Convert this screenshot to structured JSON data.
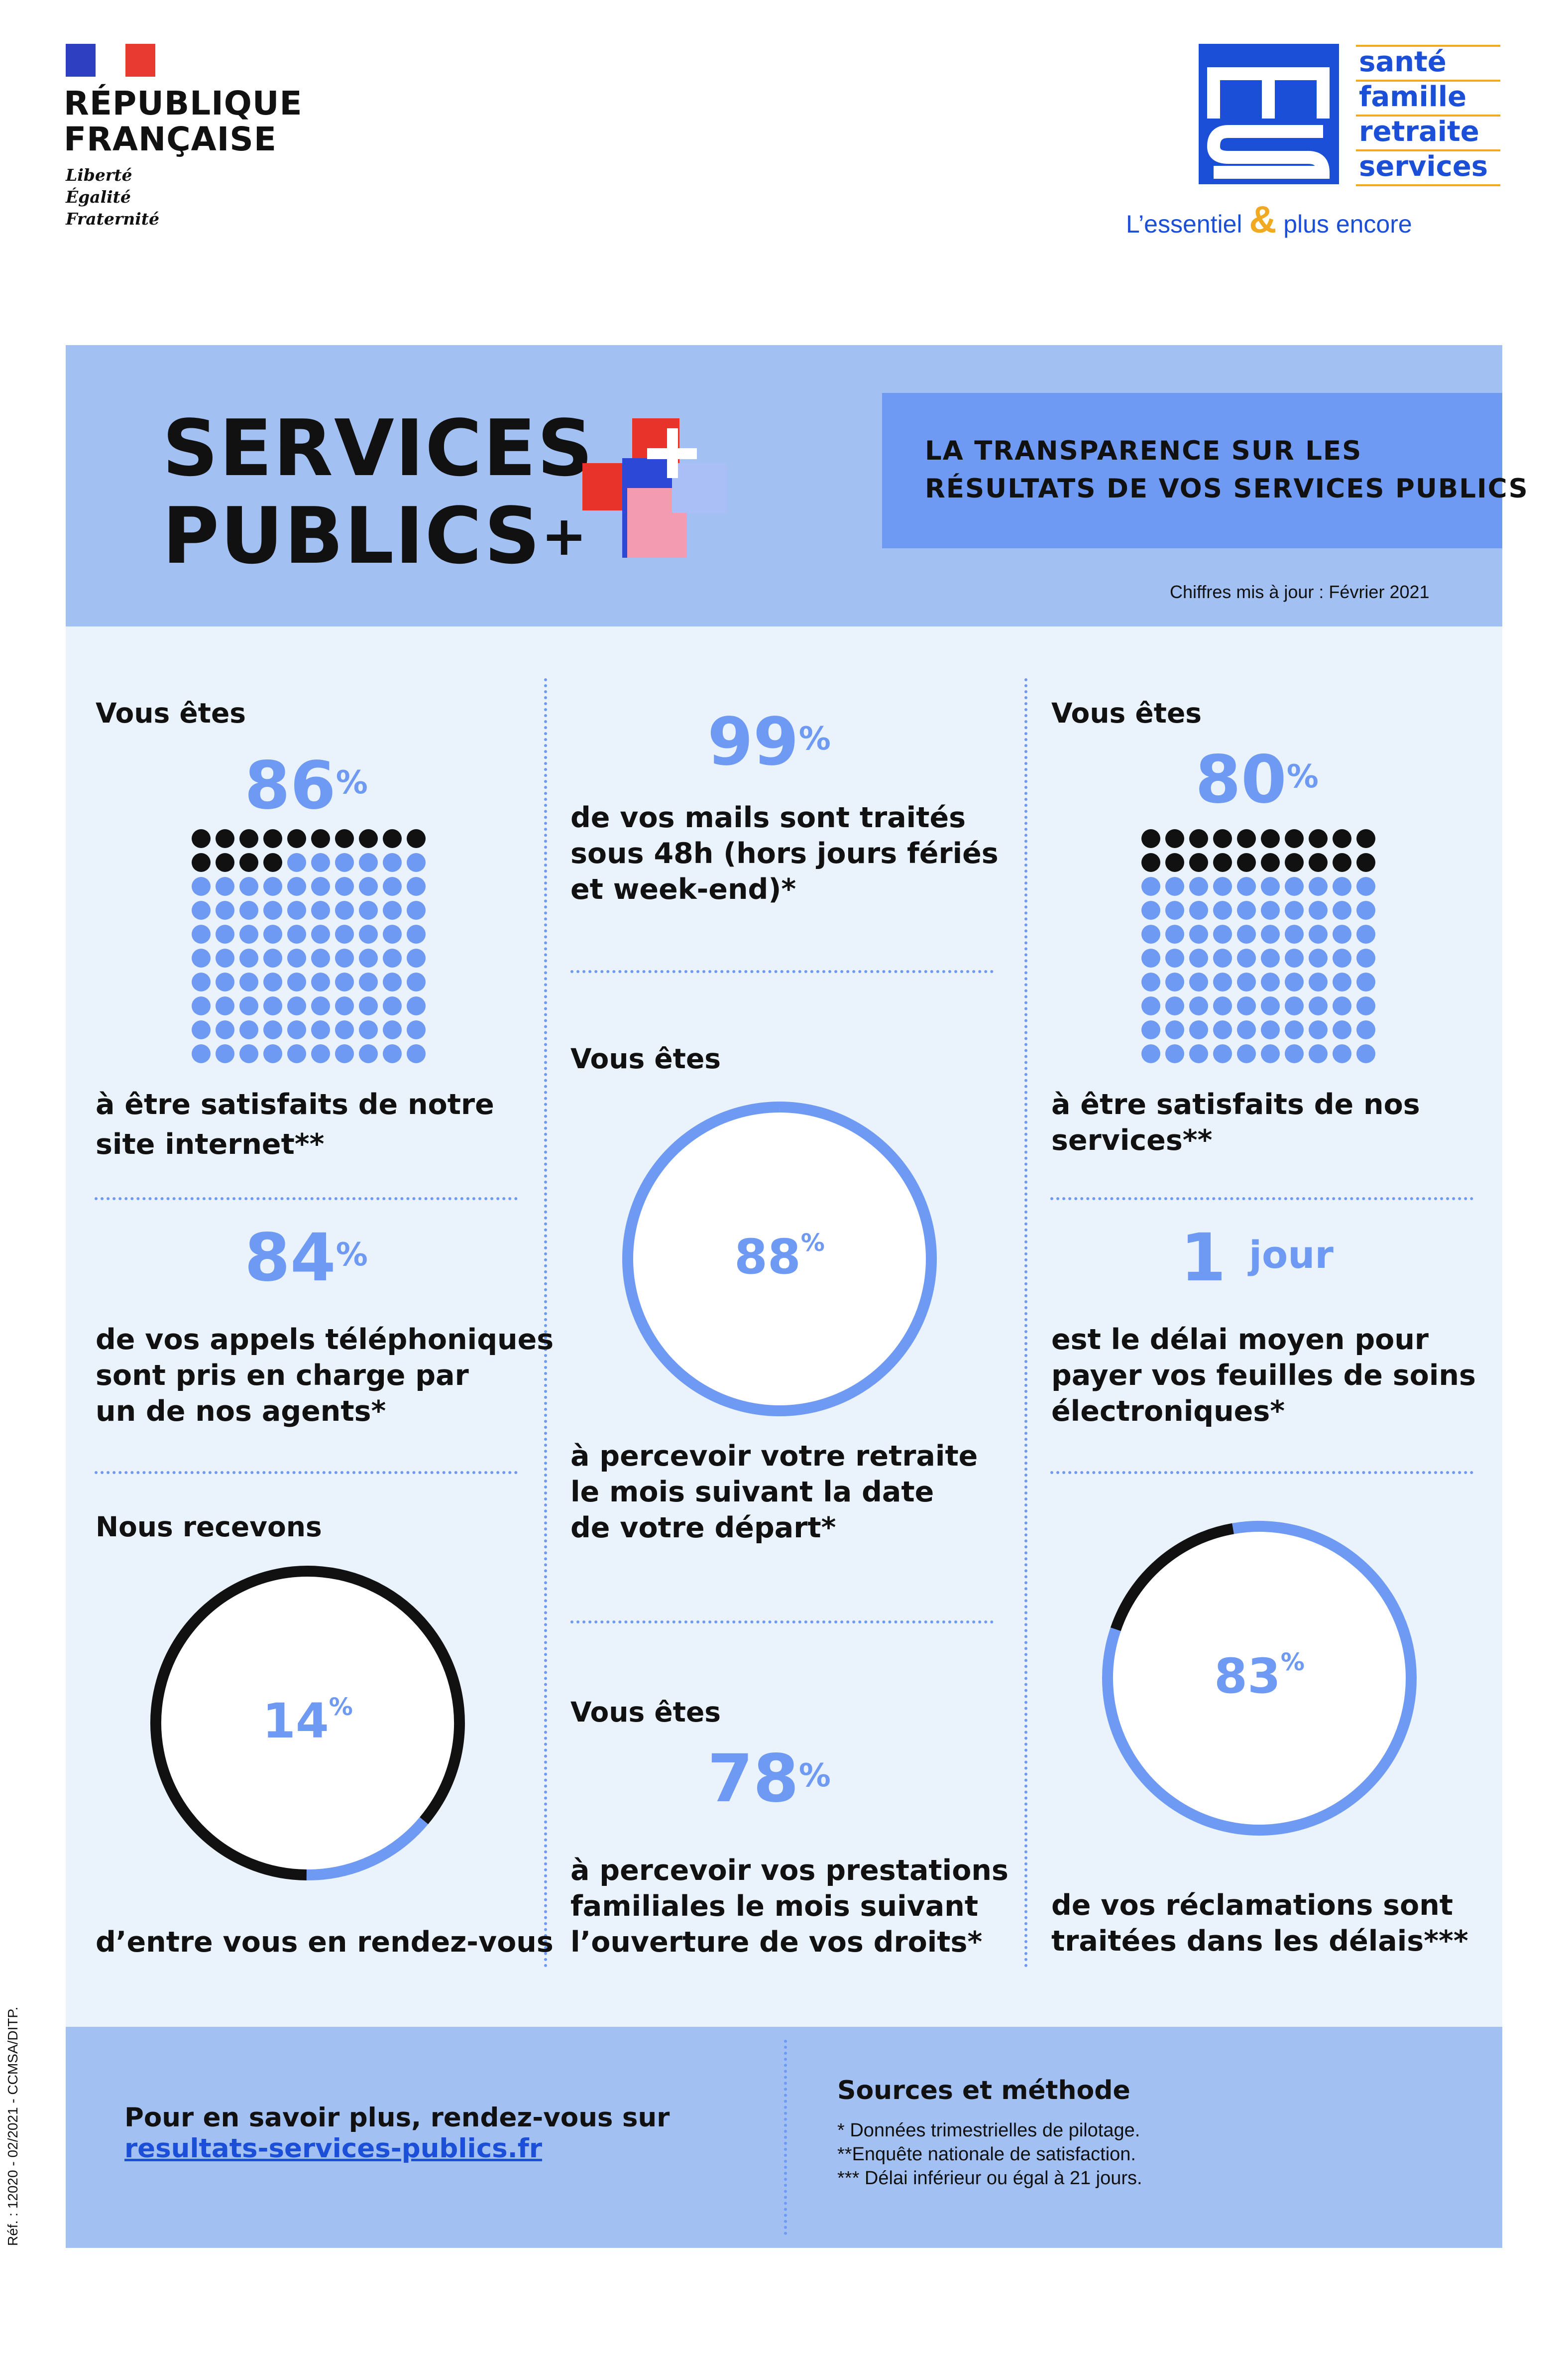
{
  "republique": {
    "line1": "RÉPUBLIQUE",
    "line2": "FRANÇAISE",
    "motto": [
      "Liberté",
      "Égalité",
      "Fraternité"
    ]
  },
  "msa": {
    "words": [
      "santé",
      "famille",
      "retraite",
      "services"
    ],
    "tagline_left": "L’essentiel",
    "tagline_amp": "&",
    "tagline_right": "plus encore",
    "colors": {
      "blue": "#1b4fd8",
      "orange": "#f2a922"
    }
  },
  "header": {
    "title_line1": "SERVICES",
    "title_line2": "PUBLICS",
    "title_plus": "+",
    "subtitle_line1": "LA TRANSPARENCE SUR LES",
    "subtitle_line2": "RÉSULTATS DE VOS SERVICES PUBLICS",
    "update": "Chiffres mis à jour : Février 2021"
  },
  "stats": {
    "website": {
      "lead": "Vous êtes",
      "value": "86",
      "unit": "%",
      "fraction": 0.86,
      "text_line1": "à être satisfaits de notre",
      "text_line2": "site internet**"
    },
    "calls": {
      "value": "84",
      "unit": "%",
      "text_line1": "de vos appels téléphoniques",
      "text_line2": "sont pris en charge par",
      "text_line3": "un de nos agents*"
    },
    "appointments": {
      "lead": "Nous recevons",
      "value": "14",
      "unit": "%",
      "fraction": 0.14,
      "text_line1": "d’entre vous en rendez-vous"
    },
    "mails": {
      "value": "99",
      "unit": "%",
      "text_line1": "de vos mails sont traités",
      "text_line2": "sous 48h (hors jours fériés",
      "text_line3": "et week-end)*"
    },
    "retirement": {
      "lead": "Vous êtes",
      "value": "88",
      "unit": "%",
      "fraction": 0.88,
      "text_line1": "à percevoir votre retraite",
      "text_line2": "le mois suivant la date",
      "text_line3": "de votre départ*"
    },
    "family": {
      "lead": "Vous êtes",
      "value": "78",
      "unit": "%",
      "text_line1": "à percevoir vos prestations",
      "text_line2": "familiales le mois suivant",
      "text_line3": "l’ouverture de vos droits*"
    },
    "services": {
      "lead": "Vous êtes",
      "value": "80",
      "unit": "%",
      "fraction": 0.8,
      "text_line1": "à être satisfaits de nos",
      "text_line2": "services**"
    },
    "delay": {
      "value": "1",
      "unit": "jour",
      "text_line1": "est le délai moyen pour",
      "text_line2": "payer vos feuilles de soins",
      "text_line3": "électroniques*"
    },
    "claims": {
      "value": "83",
      "unit": "%",
      "fraction": 0.83,
      "text_line1": "de vos réclamations sont",
      "text_line2": "traitées dans les délais***"
    }
  },
  "colors": {
    "accent": "#6f9af3",
    "dark": "#111111",
    "panel": "#a3c0f2",
    "background": "#eaf2fc"
  },
  "footer": {
    "more_line1": "Pour en savoir plus, rendez-vous sur",
    "link": "resultats-services-publics.fr",
    "sources_title": "Sources et méthode",
    "sources": [
      "* Données trimestrielles de pilotage.",
      "**Enquête nationale de satisfaction.",
      "*** Délai inférieur ou égal à 21 jours."
    ]
  },
  "reference": "Réf. : 12020 - 02/2021 - CCMSA/DITP."
}
